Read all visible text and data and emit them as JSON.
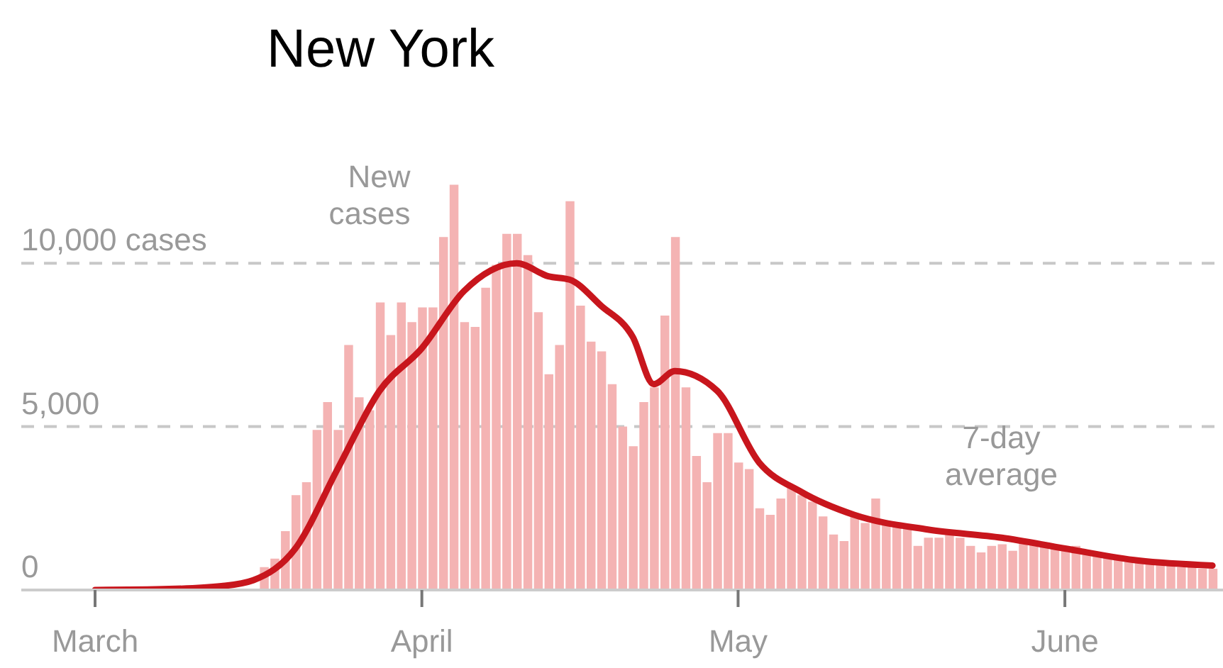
{
  "chart_data": {
    "type": "bar",
    "title": "New York",
    "x": [
      "--03-17",
      "--03-18",
      "--03-19",
      "--03-20",
      "--03-21",
      "--03-22",
      "--03-23",
      "--03-24",
      "--03-25",
      "--03-26",
      "--03-27",
      "--03-28",
      "--03-29",
      "--03-30",
      "--03-31",
      "--04-01",
      "--04-02",
      "--04-03",
      "--04-04",
      "--04-05",
      "--04-06",
      "--04-07",
      "--04-08",
      "--04-09",
      "--04-10",
      "--04-11",
      "--04-12",
      "--04-13",
      "--04-14",
      "--04-15",
      "--04-16",
      "--04-17",
      "--04-18",
      "--04-19",
      "--04-20",
      "--04-21",
      "--04-22",
      "--04-23",
      "--04-24",
      "--04-25",
      "--04-26",
      "--04-27",
      "--04-28",
      "--04-29",
      "--04-30",
      "--05-01",
      "--05-02",
      "--05-03",
      "--05-04",
      "--05-05",
      "--05-06",
      "--05-07",
      "--05-08",
      "--05-09",
      "--05-10",
      "--05-11",
      "--05-12",
      "--05-13",
      "--05-14",
      "--05-15",
      "--05-16",
      "--05-17",
      "--05-18",
      "--05-19",
      "--05-20",
      "--05-21",
      "--05-22",
      "--05-23",
      "--05-24",
      "--05-25",
      "--05-26",
      "--05-27",
      "--05-28",
      "--05-29",
      "--05-30",
      "--05-31",
      "--06-01",
      "--06-02",
      "--06-03",
      "--06-04",
      "--06-05",
      "--06-06",
      "--06-07",
      "--06-08",
      "--06-09",
      "--06-10",
      "--06-11",
      "--06-12",
      "--06-13",
      "--06-14",
      "--06-15"
    ],
    "series": [
      {
        "name": "New cases",
        "color": "#f4b3b3",
        "values": [
          700,
          960,
          1800,
          2900,
          3300,
          4900,
          5750,
          4900,
          7500,
          5900,
          5500,
          8800,
          7800,
          8800,
          8200,
          8650,
          8650,
          10800,
          12400,
          8200,
          8050,
          9250,
          9950,
          10900,
          10900,
          10250,
          8500,
          6600,
          7500,
          11900,
          8700,
          7600,
          7300,
          6300,
          5000,
          4400,
          5750,
          6200,
          8400,
          10800,
          6200,
          4100,
          3300,
          4800,
          4800,
          3900,
          3700,
          2500,
          2300,
          2800,
          3150,
          2900,
          2700,
          2250,
          1700,
          1500,
          2250,
          2050,
          2800,
          2000,
          2000,
          2000,
          1350,
          1600,
          1600,
          1700,
          1600,
          1350,
          1150,
          1350,
          1400,
          1200,
          1500,
          1500,
          1400,
          1300,
          1300,
          1350,
          1200,
          1100,
          1050,
          1000,
          900,
          850,
          800,
          800,
          750,
          700,
          700,
          650,
          650
        ]
      },
      {
        "name": "7-day average",
        "type": "line",
        "color": "#c8161d",
        "x": [
          "--03-01",
          "--03-08",
          "--03-13",
          "--03-16",
          "--03-20",
          "--03-24",
          "--03-28",
          "--04-01",
          "--04-05",
          "--04-10",
          "--04-13",
          "--04-15",
          "--04-18",
          "--04-21",
          "--04-23",
          "--04-25",
          "--04-29",
          "--05-03",
          "--05-07",
          "--05-12",
          "--05-19",
          "--05-26",
          "--06-01",
          "--06-08",
          "--06-15"
        ],
        "values": [
          0,
          30,
          120,
          300,
          1270,
          3700,
          6100,
          7400,
          9150,
          10000,
          9600,
          9500,
          8700,
          7750,
          6300,
          6700,
          6100,
          3900,
          3000,
          2300,
          1850,
          1600,
          1270,
          900,
          750
        ]
      }
    ],
    "xlim": [
      "--02-22",
      "--06-16"
    ],
    "xticks": [
      {
        "value": "--03-01",
        "label": "March"
      },
      {
        "value": "--04-01",
        "label": "April"
      },
      {
        "value": "--05-01",
        "label": "May"
      },
      {
        "value": "--06-01",
        "label": "June"
      }
    ],
    "ylim": [
      0,
      12500
    ],
    "yticks": [
      0,
      {
        "value": 5000,
        "label": "5,000"
      },
      {
        "value": 10000,
        "label": "10,000 cases"
      }
    ],
    "grid": "y"
  }
}
